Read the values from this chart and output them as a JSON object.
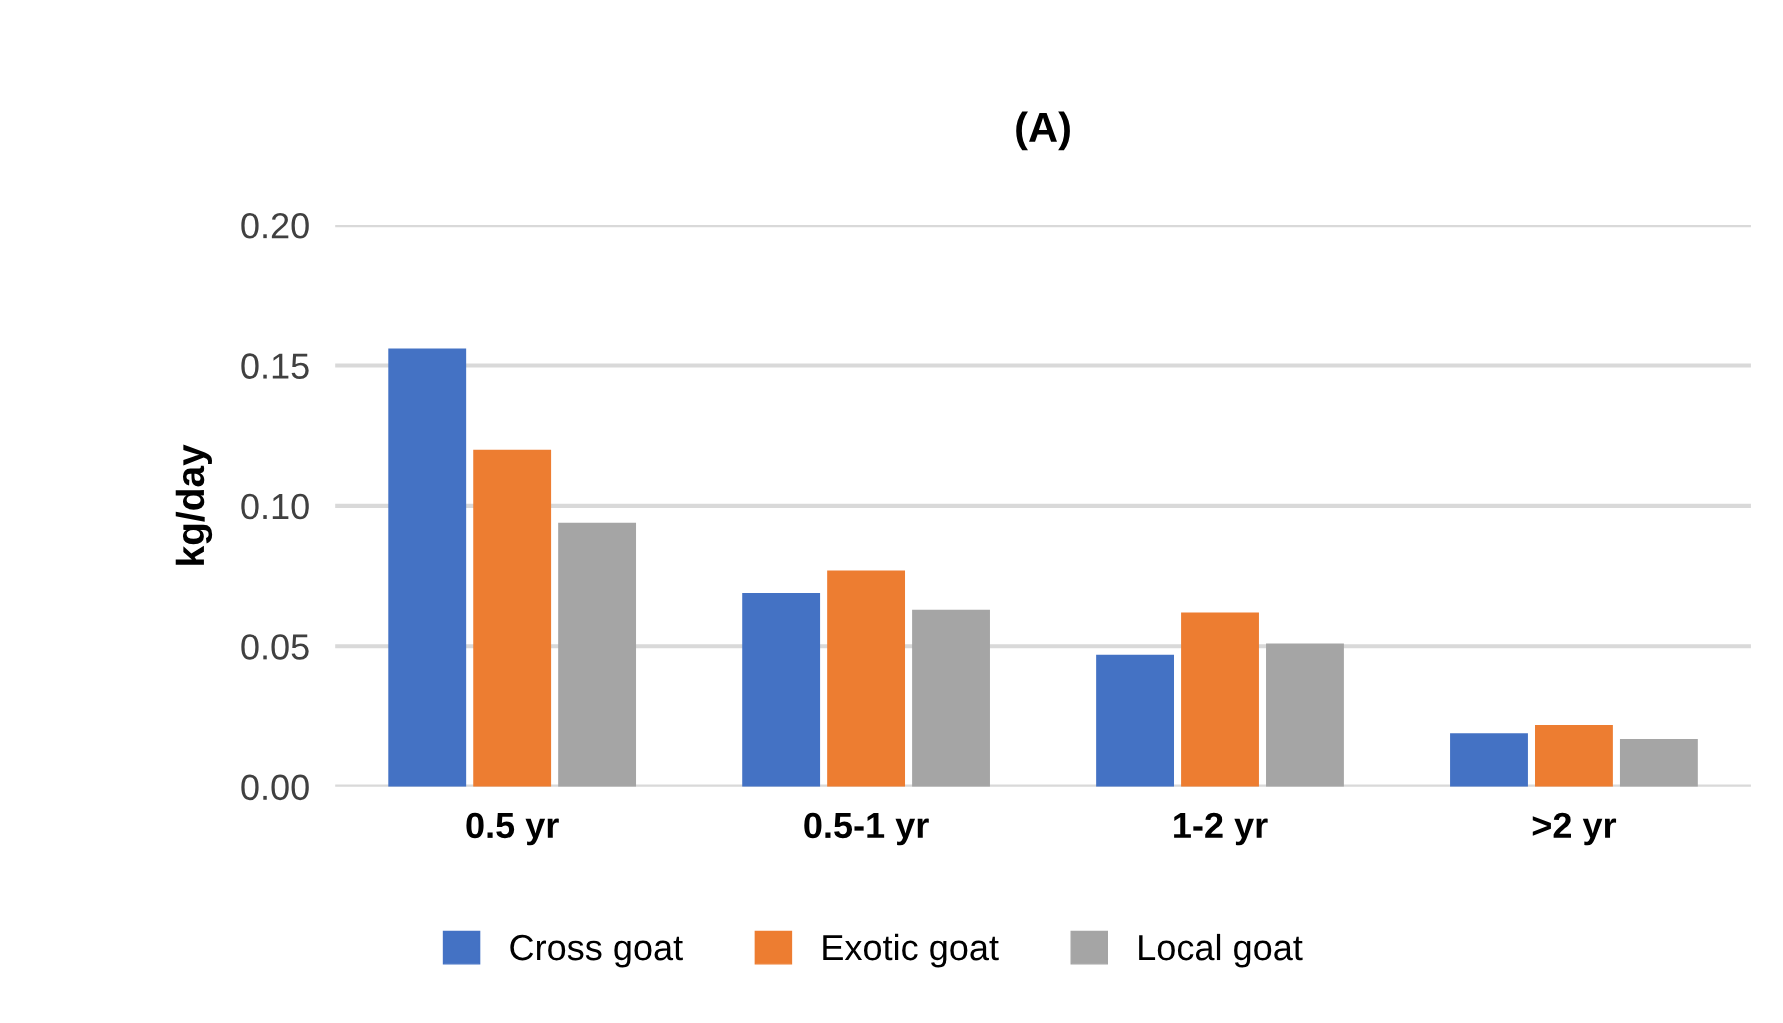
{
  "chart_data": {
    "type": "bar",
    "title": "(A)",
    "ylabel": "kg/day",
    "categories": [
      "0.5 yr",
      "0.5-1 yr",
      "1-2 yr",
      ">2 yr"
    ],
    "series": [
      {
        "name": "Cross goat",
        "color": "#4472c4",
        "values": [
          0.156,
          0.069,
          0.047,
          0.019
        ]
      },
      {
        "name": "Exotic goat",
        "color": "#ed7d31",
        "values": [
          0.12,
          0.077,
          0.062,
          0.022
        ]
      },
      {
        "name": "Local goat",
        "color": "#a5a5a5",
        "values": [
          0.094,
          0.063,
          0.051,
          0.017
        ]
      }
    ],
    "ylim": [
      0,
      0.2
    ],
    "yticks": [
      {
        "value": 0,
        "label": "0.00"
      },
      {
        "value": 0.05,
        "label": "0.05"
      },
      {
        "value": 0.1,
        "label": "0.10"
      },
      {
        "value": 0.15,
        "label": "0.15"
      },
      {
        "value": 0.2,
        "label": "0.20"
      }
    ],
    "grid": "y",
    "legend": "bottom"
  }
}
